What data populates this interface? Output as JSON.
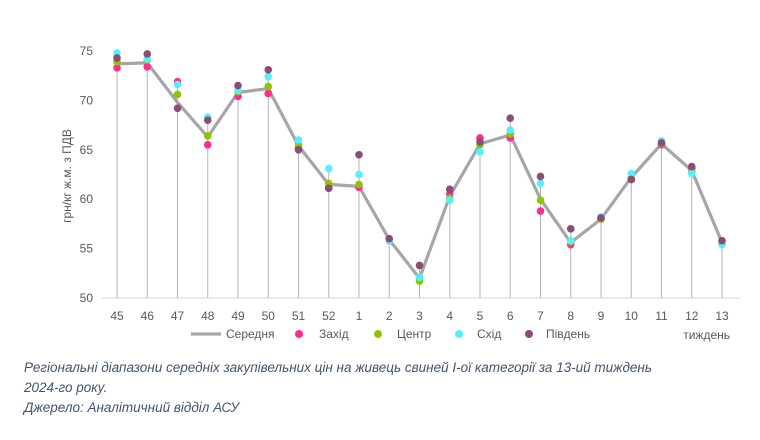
{
  "chart_data": {
    "type": "line",
    "categories": [
      "45",
      "46",
      "47",
      "48",
      "49",
      "50",
      "51",
      "52",
      "1",
      "2",
      "3",
      "4",
      "5",
      "6",
      "7",
      "8",
      "9",
      "10",
      "11",
      "12",
      "13"
    ],
    "ylabel": "грн/кг ж.м. з ПДВ",
    "xlabel": "тиждень",
    "ylim": [
      50,
      75
    ],
    "yticks": [
      50,
      55,
      60,
      65,
      70,
      75
    ],
    "grid": false,
    "legend_position": "bottom",
    "line_series": {
      "name": "Середня",
      "color": "#a6a6a6",
      "values": [
        73.7,
        73.8,
        69.8,
        66.3,
        70.8,
        71.2,
        65.4,
        61.5,
        61.3,
        55.9,
        52.0,
        60.3,
        65.6,
        66.5,
        60.0,
        55.6,
        58.0,
        62.2,
        65.6,
        62.9,
        55.6
      ]
    },
    "point_series": [
      {
        "name": "Захід",
        "color": "#ff2d8f",
        "values": [
          73.3,
          73.4,
          71.9,
          65.5,
          70.4,
          70.7,
          65.2,
          61.2,
          61.2,
          55.8,
          52.0,
          60.5,
          66.2,
          66.2,
          58.8,
          55.4,
          58.0,
          62.0,
          65.5,
          63.1,
          55.5
        ]
      },
      {
        "name": "Центр",
        "color": "#8fc400",
        "values": [
          73.9,
          74.1,
          70.6,
          66.4,
          70.9,
          71.4,
          65.5,
          61.6,
          61.5,
          55.9,
          51.7,
          60.1,
          65.5,
          66.6,
          59.9,
          55.7,
          58.0,
          62.1,
          65.6,
          62.8,
          55.5
        ]
      },
      {
        "name": "Схід",
        "color": "#55f0ff",
        "values": [
          74.8,
          74.2,
          71.6,
          68.3,
          71.0,
          72.4,
          66.0,
          63.1,
          62.5,
          55.8,
          52.1,
          59.9,
          64.8,
          67.0,
          61.6,
          55.8,
          58.2,
          62.6,
          65.9,
          62.6,
          55.4
        ]
      },
      {
        "name": "Південь",
        "color": "#8a4d76",
        "values": [
          74.3,
          74.7,
          69.2,
          68.0,
          71.5,
          73.1,
          65.0,
          61.1,
          64.5,
          56.0,
          53.3,
          61.0,
          65.8,
          68.2,
          62.3,
          57.0,
          58.1,
          62.0,
          65.7,
          63.3,
          55.8
        ]
      }
    ]
  },
  "caption": {
    "line1": "Регіональні діапазони середніх закупівельних цін на живець свиней І-ої категорії за 13-ий тиждень",
    "line2": "2024-го року.",
    "source": "Джерело: Аналітичний відділ АСУ"
  }
}
